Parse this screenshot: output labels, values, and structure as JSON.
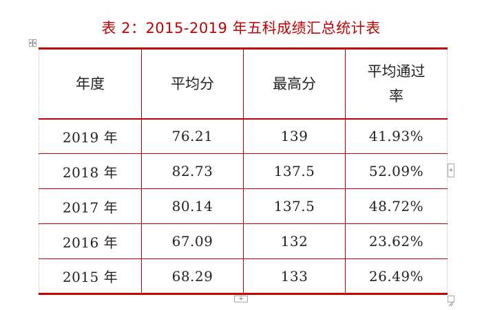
{
  "title": "表 2：2015-2019 年五科成绩汇总统计表",
  "table": {
    "headers": [
      "年度",
      "平均分",
      "最高分",
      "平均通过率"
    ],
    "rows": [
      [
        "2019 年",
        "76.21",
        "139",
        "41.93%"
      ],
      [
        "2018 年",
        "82.73",
        "137.5",
        "52.09%"
      ],
      [
        "2017 年",
        "80.14",
        "137.5",
        "48.72%"
      ],
      [
        "2016 年",
        "67.09",
        "132",
        "23.62%"
      ],
      [
        "2015 年",
        "68.29",
        "133",
        "26.49%"
      ]
    ]
  },
  "controls": {
    "add_row_glyph": "+",
    "add_col_glyph": "+"
  },
  "colors": {
    "title": "#c00000",
    "border": "#c00000"
  }
}
